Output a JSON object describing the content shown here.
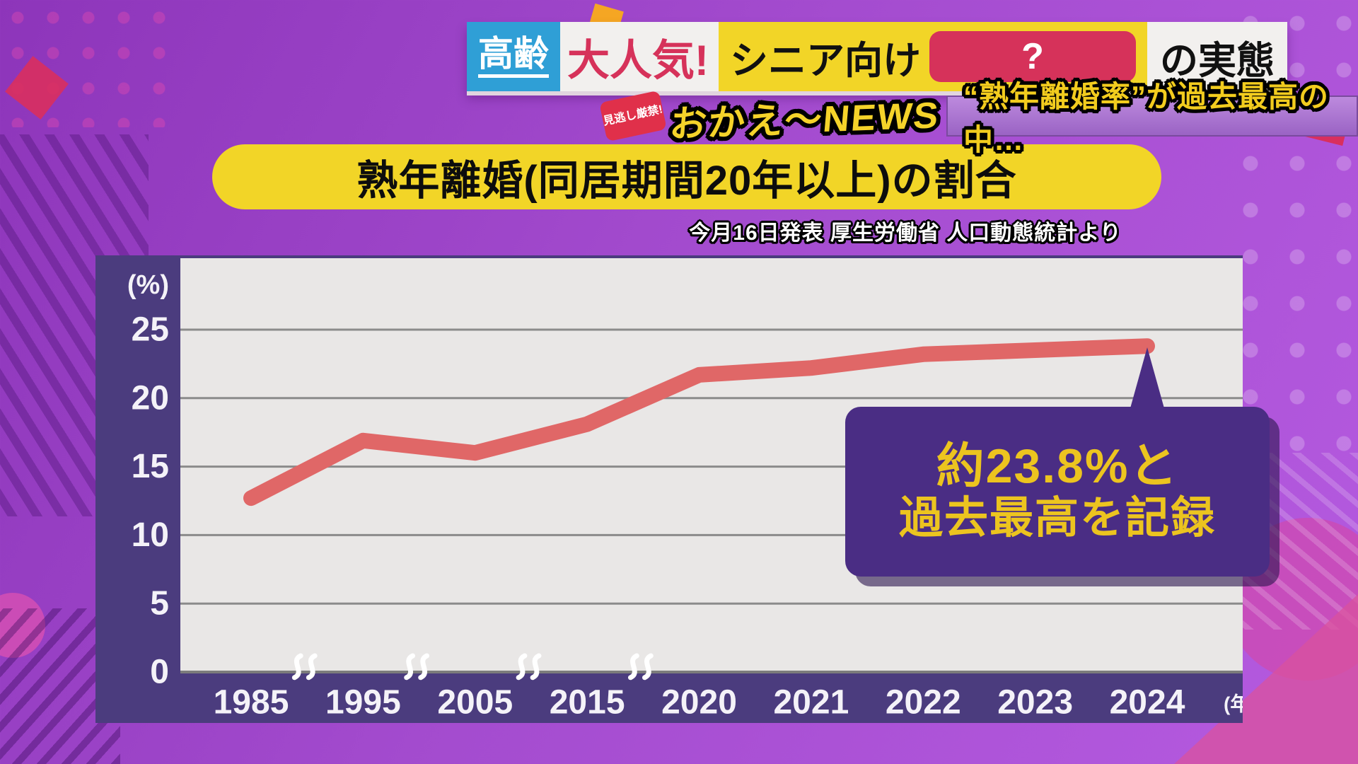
{
  "banner": {
    "tag": "高齢",
    "headline_red": "大人気!",
    "headline_yellow": "シニア向け",
    "mystery": "?",
    "headline_suffix": "の実態"
  },
  "subheader": {
    "burst": "見逃し厳禁!",
    "logo": "おかえ〜NEWS",
    "ticker": "“熟年離婚率”が過去最高の中…"
  },
  "title": {
    "text": "熟年離婚(同居期間20年以上)の割合"
  },
  "source": {
    "text": "今月16日発表 厚生労働省 人口動態統計より"
  },
  "callout": {
    "line1": "約23.8%と",
    "line2": "過去最高を記録"
  },
  "chart_data": {
    "type": "line",
    "title": "熟年離婚(同居期間20年以上)の割合",
    "categories": [
      "1985",
      "1995",
      "2005",
      "2015",
      "2020",
      "2021",
      "2022",
      "2023",
      "2024"
    ],
    "values": [
      12.7,
      16.9,
      16.0,
      18.1,
      21.7,
      22.2,
      23.2,
      23.5,
      23.8
    ],
    "ylabel_unit": "(%)",
    "xlabel_unit": "(年)",
    "ylim": [
      0,
      27.5
    ],
    "yticks": [
      0,
      5,
      10,
      15,
      20,
      25
    ],
    "axis_breaks_after_index": [
      0,
      1,
      2,
      3
    ],
    "grid": true,
    "legend": "none",
    "annotation": {
      "text": "約23.8%と過去最高を記録",
      "year": "2024",
      "value": 23.8
    }
  },
  "colors": {
    "background": "#a44ccf",
    "panel": "#4b3c7e",
    "plot_bg": "#e9e7e6",
    "gridline": "#8b8b8b",
    "line": "#e06767",
    "axis_text": "#f4f2f8",
    "highlight_yellow": "#f2d527",
    "crimson": "#d6325a",
    "tag_blue": "#2f9fd6",
    "callout_bg": "#4a2d84",
    "callout_text": "#ecc41f"
  }
}
